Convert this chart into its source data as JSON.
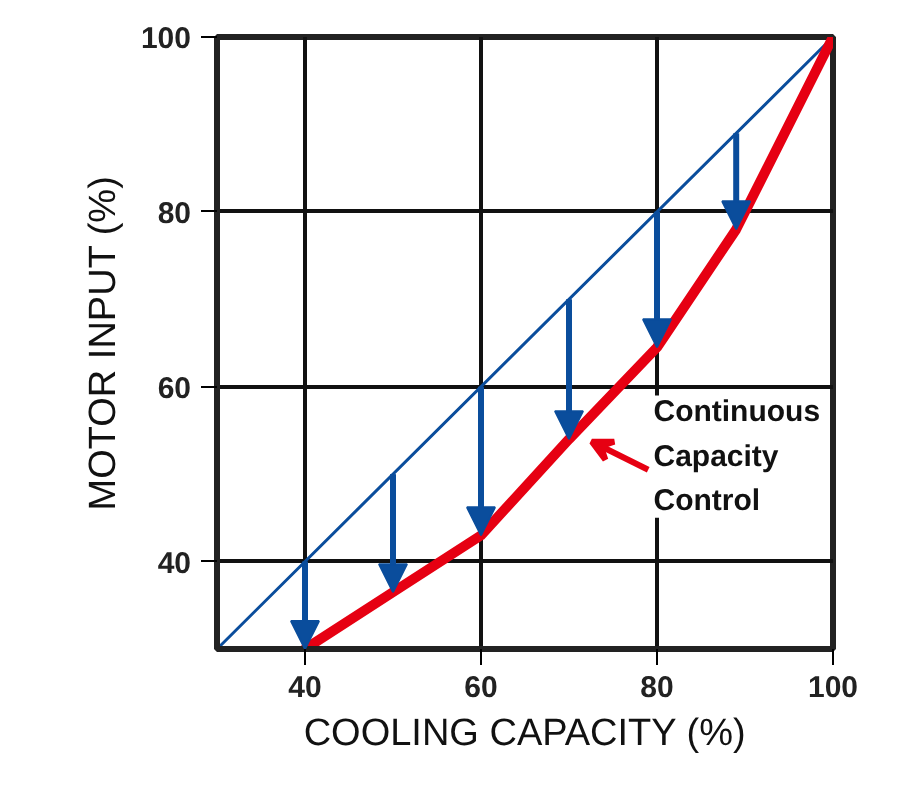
{
  "chart_data": {
    "type": "line",
    "xlabel": "COOLING CAPACITY (%)",
    "ylabel": "MOTOR INPUT (%)",
    "xlim": [
      30,
      100
    ],
    "ylim": [
      30,
      100
    ],
    "xticks": [
      40,
      60,
      80,
      100
    ],
    "yticks": [
      40,
      60,
      80,
      100
    ],
    "grid": true,
    "series": [
      {
        "color": "#0a4d9c",
        "x": [
          30,
          100
        ],
        "values": [
          30,
          100
        ]
      },
      {
        "color": "#e60012",
        "x": [
          40,
          50,
          60,
          70,
          80,
          89,
          100
        ],
        "values": [
          30,
          36.5,
          43,
          54,
          64.5,
          78,
          100
        ]
      }
    ],
    "annotations": [
      {
        "text": "Continuous\nCapacity\nControl",
        "x": 72,
        "y": 54
      }
    ]
  }
}
